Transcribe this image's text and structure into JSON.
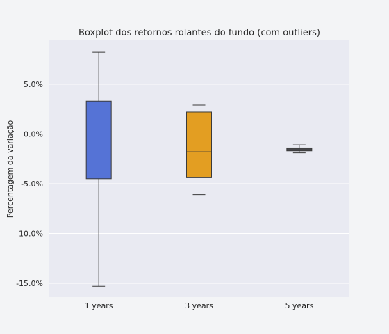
{
  "chart_data": {
    "type": "boxplot",
    "title": "Boxplot dos retornos rolantes do fundo (com outliers)",
    "xlabel": "",
    "ylabel": "Percentagem da variação",
    "ylim": [
      -16.4,
      9.4
    ],
    "yticks": [
      {
        "value": 5,
        "label": "5.0%"
      },
      {
        "value": 0,
        "label": "0.0%"
      },
      {
        "value": -5,
        "label": "-5.0%"
      },
      {
        "value": -10,
        "label": "-10.0%"
      },
      {
        "value": -15,
        "label": "-15.0%"
      }
    ],
    "grid": true,
    "categories": [
      "1 years",
      "3 years",
      "5 years"
    ],
    "boxes": [
      {
        "category": "1 years",
        "whisker_low": -15.3,
        "q1": -4.5,
        "median": -0.7,
        "q3": 3.3,
        "whisker_high": 8.2,
        "color": "#5573d6"
      },
      {
        "category": "3 years",
        "whisker_low": -6.1,
        "q1": -4.4,
        "median": -1.8,
        "q3": 2.2,
        "whisker_high": 2.9,
        "color": "#e39e22"
      },
      {
        "category": "5 years",
        "whisker_low": -1.9,
        "q1": -1.7,
        "median": -1.5,
        "q3": -1.4,
        "whisker_high": -1.1,
        "color": "#4f4f57"
      }
    ],
    "colors": {
      "plot_background": "#e9eaf2",
      "figure_background": "#f3f4f6",
      "grid": "#ffffff",
      "outline": "#3a3a3a"
    }
  }
}
